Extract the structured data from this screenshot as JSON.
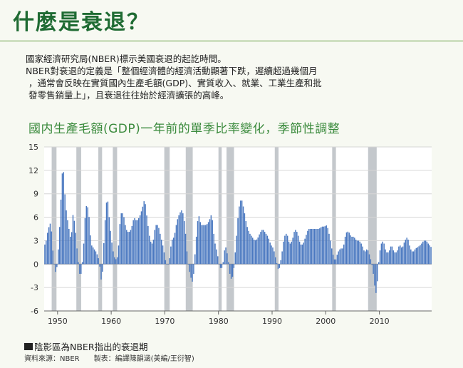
{
  "header": {
    "title": "什麼是衰退？"
  },
  "description": {
    "lines": [
      "國家經濟研究局(NBER)標示美國衰退的起訖時間。",
      "NBER對衰退的定義是「整個經濟體的經濟活動顯著下跌，遲續超過幾個月",
      "，通常會反映在實質國內生產毛額(GDP)、實質收入、就業、工業生產和批",
      "發零售銷量上」，且衰退往往始於經濟擴張的高峰。"
    ]
  },
  "chart_data": {
    "type": "bar",
    "title": "國内生產毛額(GDP)一年前的單季比率變化，季節性調整",
    "xlabel": "",
    "ylabel": "",
    "x_range": [
      1947.5,
      2019.75
    ],
    "ylim": [
      -6,
      15
    ],
    "y_ticks": [
      "15",
      "12",
      "9",
      "6",
      "3",
      "0",
      "-3",
      "-6"
    ],
    "x_ticks": [
      "1950",
      "1960",
      "1970",
      "1980",
      "1990",
      "2000",
      "2010"
    ],
    "bar_color": "#4a78c0",
    "recession_color": "#c4c8cc",
    "grid": true,
    "recessions": [
      {
        "start": 1948.9,
        "end": 1949.8
      },
      {
        "start": 1953.5,
        "end": 1954.4
      },
      {
        "start": 1957.6,
        "end": 1958.3
      },
      {
        "start": 1960.3,
        "end": 1961.1
      },
      {
        "start": 1969.9,
        "end": 1970.9
      },
      {
        "start": 1973.9,
        "end": 1975.2
      },
      {
        "start": 1980.0,
        "end": 1980.6
      },
      {
        "start": 1981.5,
        "end": 1982.9
      },
      {
        "start": 1990.5,
        "end": 1991.2
      },
      {
        "start": 2001.2,
        "end": 2001.9
      },
      {
        "start": 2007.9,
        "end": 2009.5
      }
    ],
    "anchors": [
      [
        1947.75,
        2.5
      ],
      [
        1948.25,
        4.5
      ],
      [
        1948.75,
        5.4
      ],
      [
        1949.25,
        0.5
      ],
      [
        1949.75,
        -1.5
      ],
      [
        1950.25,
        3.0
      ],
      [
        1950.75,
        10.0
      ],
      [
        1951.0,
        13.2
      ],
      [
        1951.5,
        7.5
      ],
      [
        1952.0,
        5.0
      ],
      [
        1952.5,
        3.0
      ],
      [
        1952.9,
        6.5
      ],
      [
        1953.25,
        5.0
      ],
      [
        1953.75,
        1.0
      ],
      [
        1954.25,
        -2.0
      ],
      [
        1954.75,
        1.0
      ],
      [
        1955.25,
        7.5
      ],
      [
        1955.75,
        7.2
      ],
      [
        1956.25,
        2.5
      ],
      [
        1956.75,
        2.0
      ],
      [
        1957.25,
        1.5
      ],
      [
        1957.75,
        0.5
      ],
      [
        1958.25,
        -2.8
      ],
      [
        1958.75,
        4.5
      ],
      [
        1959.25,
        9.0
      ],
      [
        1959.75,
        5.0
      ],
      [
        1960.25,
        2.0
      ],
      [
        1960.75,
        0.5
      ],
      [
        1961.25,
        1.0
      ],
      [
        1961.75,
        6.5
      ],
      [
        1962.25,
        6.5
      ],
      [
        1962.75,
        4.5
      ],
      [
        1963.25,
        4.0
      ],
      [
        1963.75,
        4.5
      ],
      [
        1964.25,
        6.0
      ],
      [
        1964.75,
        5.5
      ],
      [
        1965.25,
        6.0
      ],
      [
        1965.75,
        7.0
      ],
      [
        1966.25,
        8.4
      ],
      [
        1966.75,
        5.5
      ],
      [
        1967.25,
        3.0
      ],
      [
        1967.75,
        2.5
      ],
      [
        1968.25,
        5.0
      ],
      [
        1968.75,
        5.0
      ],
      [
        1969.25,
        3.5
      ],
      [
        1969.75,
        2.0
      ],
      [
        1970.25,
        0.0
      ],
      [
        1970.75,
        0.0
      ],
      [
        1971.25,
        3.0
      ],
      [
        1971.75,
        3.5
      ],
      [
        1972.25,
        5.5
      ],
      [
        1972.75,
        6.5
      ],
      [
        1973.25,
        7.0
      ],
      [
        1973.75,
        5.0
      ],
      [
        1974.25,
        0.5
      ],
      [
        1974.75,
        -1.5
      ],
      [
        1975.25,
        -2.5
      ],
      [
        1975.75,
        2.5
      ],
      [
        1976.25,
        6.5
      ],
      [
        1976.75,
        5.0
      ],
      [
        1977.25,
        5.0
      ],
      [
        1977.75,
        5.0
      ],
      [
        1978.25,
        5.5
      ],
      [
        1978.75,
        6.5
      ],
      [
        1979.25,
        3.0
      ],
      [
        1979.75,
        1.5
      ],
      [
        1980.25,
        -0.5
      ],
      [
        1980.75,
        -0.5
      ],
      [
        1981.25,
        2.5
      ],
      [
        1981.75,
        1.0
      ],
      [
        1982.25,
        -2.0
      ],
      [
        1982.75,
        -1.5
      ],
      [
        1983.25,
        2.5
      ],
      [
        1983.75,
        7.0
      ],
      [
        1984.25,
        8.5
      ],
      [
        1984.75,
        7.0
      ],
      [
        1985.25,
        5.0
      ],
      [
        1985.75,
        4.0
      ],
      [
        1986.25,
        3.5
      ],
      [
        1986.75,
        3.0
      ],
      [
        1987.25,
        3.2
      ],
      [
        1987.75,
        4.0
      ],
      [
        1988.25,
        4.5
      ],
      [
        1988.75,
        4.0
      ],
      [
        1989.25,
        3.5
      ],
      [
        1989.75,
        2.5
      ],
      [
        1990.25,
        2.0
      ],
      [
        1990.75,
        0.5
      ],
      [
        1991.25,
        -1.0
      ],
      [
        1991.75,
        1.0
      ],
      [
        1992.25,
        3.5
      ],
      [
        1992.75,
        4.0
      ],
      [
        1993.25,
        2.5
      ],
      [
        1993.75,
        3.0
      ],
      [
        1994.25,
        4.5
      ],
      [
        1994.75,
        4.0
      ],
      [
        1995.25,
        2.5
      ],
      [
        1995.75,
        2.5
      ],
      [
        1996.25,
        3.5
      ],
      [
        1996.75,
        4.5
      ],
      [
        1997.25,
        4.5
      ],
      [
        1997.75,
        4.5
      ],
      [
        1998.25,
        4.5
      ],
      [
        1998.75,
        4.5
      ],
      [
        1999.25,
        4.8
      ],
      [
        1999.75,
        4.8
      ],
      [
        2000.25,
        5.0
      ],
      [
        2000.75,
        3.5
      ],
      [
        2001.25,
        1.5
      ],
      [
        2001.75,
        0.3
      ],
      [
        2002.25,
        1.5
      ],
      [
        2002.75,
        2.0
      ],
      [
        2003.25,
        2.0
      ],
      [
        2003.75,
        4.0
      ],
      [
        2004.25,
        4.2
      ],
      [
        2004.75,
        3.5
      ],
      [
        2005.25,
        3.5
      ],
      [
        2005.75,
        3.0
      ],
      [
        2006.25,
        3.0
      ],
      [
        2006.75,
        2.5
      ],
      [
        2007.25,
        1.5
      ],
      [
        2007.75,
        2.0
      ],
      [
        2008.25,
        1.0
      ],
      [
        2008.75,
        -0.5
      ],
      [
        2009.25,
        -3.5
      ],
      [
        2009.5,
        -3.9
      ],
      [
        2009.75,
        -0.5
      ],
      [
        2010.25,
        2.5
      ],
      [
        2010.75,
        3.0
      ],
      [
        2011.25,
        1.5
      ],
      [
        2011.75,
        1.5
      ],
      [
        2012.25,
        2.5
      ],
      [
        2012.75,
        1.5
      ],
      [
        2013.25,
        1.5
      ],
      [
        2013.75,
        2.5
      ],
      [
        2014.25,
        2.0
      ],
      [
        2014.75,
        3.0
      ],
      [
        2015.25,
        3.5
      ],
      [
        2015.75,
        2.0
      ],
      [
        2016.25,
        1.5
      ],
      [
        2016.75,
        2.0
      ],
      [
        2017.25,
        2.2
      ],
      [
        2017.75,
        2.5
      ],
      [
        2018.25,
        3.0
      ],
      [
        2018.75,
        3.0
      ],
      [
        2019.25,
        2.5
      ],
      [
        2019.6,
        2.2
      ]
    ]
  },
  "legend": {
    "label": "陰影區為NBER指出的衰退期"
  },
  "footer": {
    "source": "資料來源：NBER　　製表：編譯陳韻涵(美編/王衍智)"
  }
}
